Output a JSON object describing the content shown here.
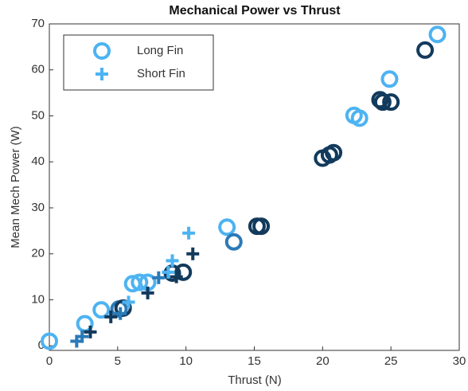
{
  "chart_data": {
    "type": "scatter",
    "title": "Mechanical Power vs Thrust",
    "x_label": "Thrust (N)",
    "y_label": "Mean Mech Power (W)",
    "xlim": [
      0,
      30
    ],
    "ylim": [
      -1,
      70
    ],
    "xticks": [
      0,
      5,
      10,
      15,
      20,
      25,
      30
    ],
    "yticks": [
      0,
      10,
      20,
      30,
      40,
      50,
      60,
      70
    ],
    "grid": false,
    "legend": "upper left",
    "series": [
      {
        "name": "Long Fin",
        "marker": "circle",
        "color": "#4db3f2",
        "x": [
          0,
          2.6,
          3.8,
          5.1,
          5.4,
          6.1,
          6.6,
          7.2,
          9,
          9.8,
          13,
          13.5,
          15.2,
          15.5,
          20,
          20.5,
          20.8,
          22.3,
          22.7,
          24.2,
          24.4,
          25,
          24.9,
          27.5,
          28.4
        ],
        "values": [
          1,
          4.8,
          7.8,
          8,
          8.2,
          13.5,
          13.8,
          13.8,
          15.8,
          16,
          25.8,
          22.6,
          26,
          26,
          40.8,
          41.5,
          42,
          50.1,
          49.5,
          53.5,
          53,
          53,
          58,
          64.3,
          67.7
        ],
        "point_colors": [
          "#4db3f2",
          "#4db3f2",
          "#4db3f2",
          "#2a7ab8",
          "#123a5c",
          "#4db3f2",
          "#4db3f2",
          "#4db3f2",
          "#123a5c",
          "#123a5c",
          "#4db3f2",
          "#2a7ab8",
          "#123a5c",
          "#123a5c",
          "#123a5c",
          "#123a5c",
          "#123a5c",
          "#4db3f2",
          "#4db3f2",
          "#123a5c",
          "#123a5c",
          "#123a5c",
          "#4db3f2",
          "#123a5c",
          "#4db3f2"
        ]
      },
      {
        "name": "Short Fin",
        "marker": "plus",
        "color": "#4db3f2",
        "x": [
          2,
          2.4,
          3,
          4.5,
          5.2,
          5.8,
          7.2,
          8,
          8.7,
          9,
          9.3,
          10.2,
          10.5
        ],
        "values": [
          1,
          2,
          3,
          6.3,
          7,
          9.5,
          11.5,
          14.8,
          16,
          18.5,
          15,
          24.5,
          20
        ],
        "point_colors": [
          "#2a7ab8",
          "#2a7ab8",
          "#123a5c",
          "#123a5c",
          "#2a7ab8",
          "#4db3f2",
          "#123a5c",
          "#2a7ab8",
          "#4db3f2",
          "#4db3f2",
          "#123a5c",
          "#4db3f2",
          "#123a5c"
        ]
      }
    ]
  }
}
